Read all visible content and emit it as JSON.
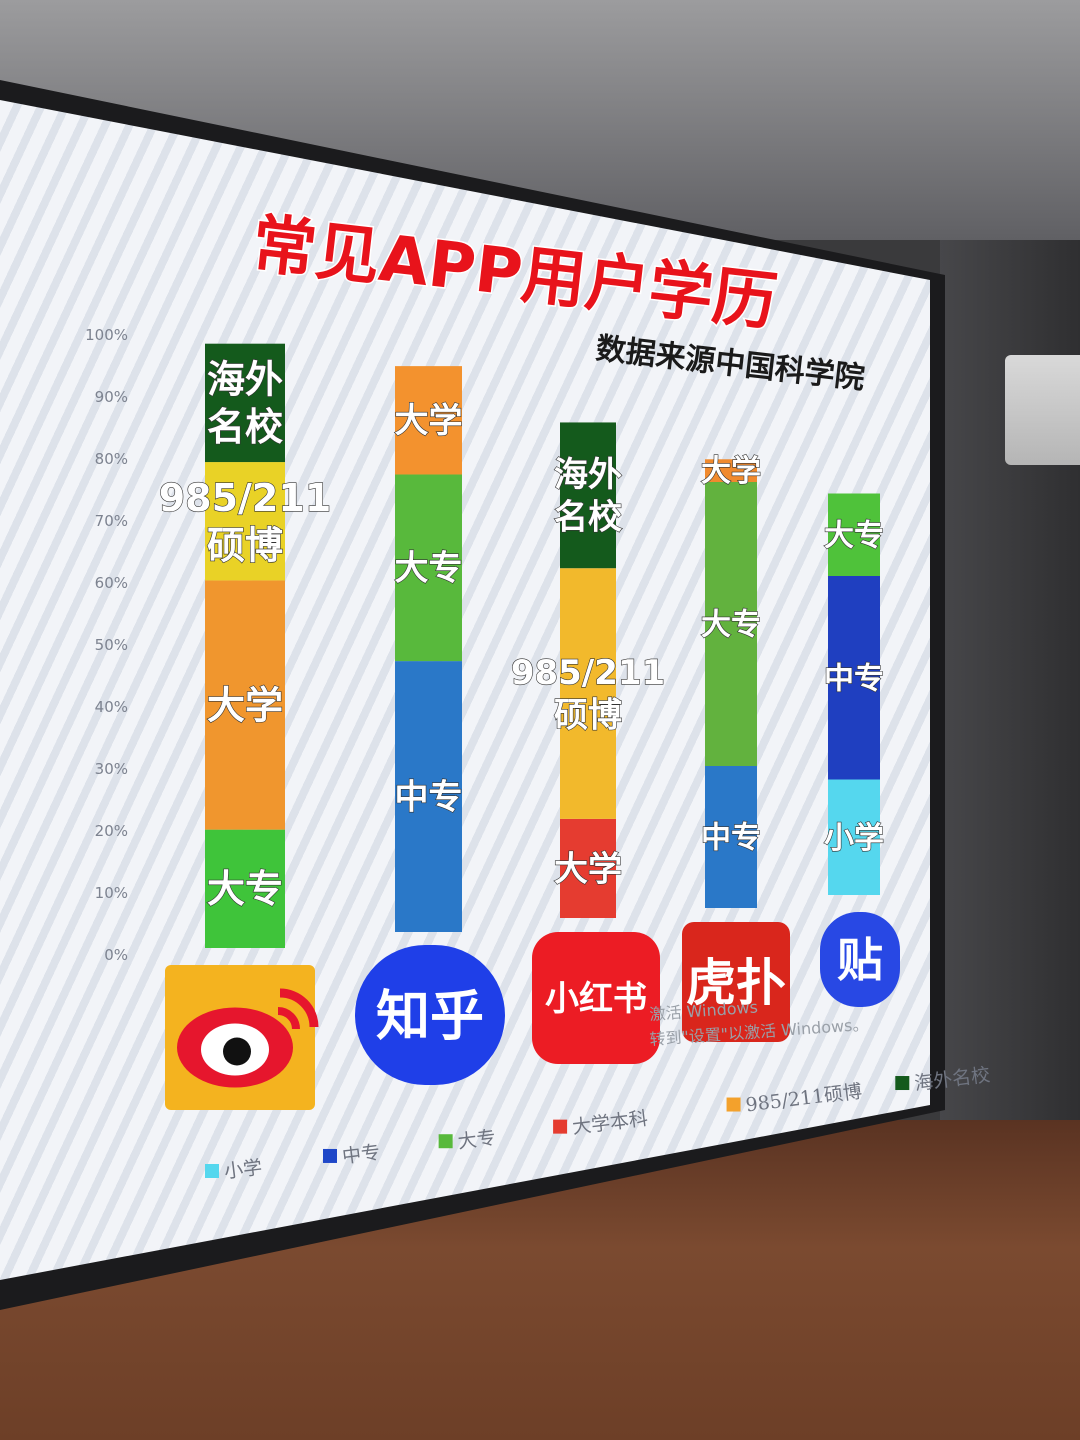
{
  "chart_data": {
    "type": "bar",
    "title": "常见APP用户学历",
    "subtitle": "数据来源中国科学院",
    "yticks": [
      "100%",
      "90%",
      "80%",
      "70%",
      "60%",
      "50%",
      "40%",
      "30%",
      "20%",
      "10%",
      "0%"
    ],
    "ylim": [
      0,
      100
    ],
    "legend": {
      "placement": "bottom",
      "entries": [
        {
          "name": "小学",
          "color": "#55d7ee"
        },
        {
          "name": "中专",
          "color": "#1f47c8"
        },
        {
          "name": "大专",
          "color": "#58b93c"
        },
        {
          "name": "大学本科",
          "color": "#e53c30"
        },
        {
          "name": "985/211硕博",
          "color": "#f3a12c"
        },
        {
          "name": "海外名校",
          "color": "#145a1c"
        }
      ]
    },
    "stacks": [
      {
        "app": "weibo",
        "segments": [
          {
            "label": "大专",
            "from": 0,
            "to": 19,
            "color": "#3fc43a"
          },
          {
            "label": "大学",
            "from": 19,
            "to": 59,
            "color": "#f0962e"
          },
          {
            "label": "985/211 硕博",
            "from": 59,
            "to": 78,
            "color": "#e9d226"
          },
          {
            "label": "海外 名校",
            "from": 78,
            "to": 97,
            "color": "#145a1c"
          }
        ]
      },
      {
        "app": "zhihu",
        "segments": [
          {
            "label": "中专",
            "from": 0,
            "to": 45,
            "color": "#2a78c8"
          },
          {
            "label": "大专",
            "from": 45,
            "to": 76,
            "color": "#58b93c"
          },
          {
            "label": "大学",
            "from": 76,
            "to": 94,
            "color": "#f3922e"
          }
        ]
      },
      {
        "app": "xiaohongshu",
        "segments": [
          {
            "label": "大学",
            "from": 0,
            "to": 17,
            "color": "#e53c30"
          },
          {
            "label": "985/211 硕博",
            "from": 17,
            "to": 60,
            "color": "#f2b92c"
          },
          {
            "label": "海外 名校",
            "from": 60,
            "to": 85,
            "color": "#145a1c"
          }
        ]
      },
      {
        "app": "hupu",
        "segments": [
          {
            "label": "中专",
            "from": 0,
            "to": 25,
            "color": "#2a78c8"
          },
          {
            "label": "大专",
            "from": 25,
            "to": 75,
            "color": "#62b23e"
          },
          {
            "label": "大学",
            "from": 75,
            "to": 79,
            "color": "#f08a2e"
          }
        ]
      },
      {
        "app": "tieba",
        "segments": [
          {
            "label": "小学",
            "from": 0,
            "to": 21,
            "color": "#55d7ee"
          },
          {
            "label": "中专",
            "from": 21,
            "to": 58,
            "color": "#1f3fc0"
          },
          {
            "label": "大专",
            "from": 58,
            "to": 73,
            "color": "#4fc23a"
          }
        ]
      }
    ]
  },
  "apps": [
    {
      "id": "weibo",
      "label": "",
      "icon": "weibo-logo-icon",
      "color": "#f4b31f"
    },
    {
      "id": "zhihu",
      "label": "知乎",
      "icon": "zhihu-logo-icon",
      "color": "#1f3fe8"
    },
    {
      "id": "xiaohongshu",
      "label": "小红书",
      "icon": "xiaohongshu-logo-icon",
      "color": "#ec1c24"
    },
    {
      "id": "hupu",
      "label": "虎扑",
      "icon": "hupu-logo-icon",
      "color": "#d9261c"
    },
    {
      "id": "tieba",
      "label": "贴",
      "icon": "tieba-logo-icon",
      "color": "#2848e4"
    }
  ],
  "watermark": {
    "line1": "激活 Windows",
    "line2": "转到\"设置\"以激活 Windows。"
  }
}
